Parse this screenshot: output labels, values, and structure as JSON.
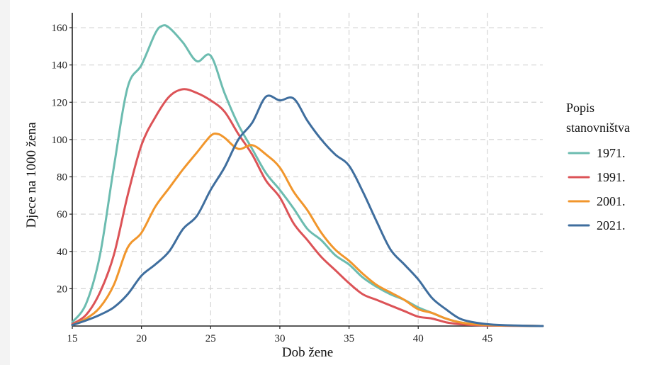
{
  "chart_data": {
    "type": "line",
    "title": "",
    "xlabel": "Dob žene",
    "ylabel": "Djece na 1000 žena",
    "xlim": [
      15,
      49
    ],
    "ylim": [
      0,
      168
    ],
    "xticks": [
      15,
      20,
      25,
      30,
      35,
      40,
      45
    ],
    "yticks": [
      20,
      40,
      60,
      80,
      100,
      120,
      140,
      160
    ],
    "grid": true,
    "legend_position": "right",
    "legend_title": [
      "Popis",
      "stanovništva"
    ],
    "series": [
      {
        "name": "1971.",
        "color": "#6cbcb0",
        "x": [
          15,
          16,
          17,
          18,
          19,
          20,
          21,
          21.5,
          22,
          23,
          24,
          25,
          26,
          27,
          28,
          29,
          30,
          31,
          32,
          33,
          34,
          35,
          36,
          37,
          38,
          39,
          40,
          41,
          42,
          43,
          44,
          45,
          46,
          47,
          48,
          49
        ],
        "y": [
          2,
          12,
          38,
          85,
          128,
          140,
          157,
          161,
          160,
          152,
          142,
          145,
          125,
          108,
          95,
          82,
          73,
          63,
          52,
          46,
          38,
          33,
          26,
          21,
          17,
          14,
          10,
          7,
          4,
          2,
          1,
          0.5,
          0.3,
          0.2,
          0.1,
          0
        ]
      },
      {
        "name": "1991.",
        "color": "#dc5357",
        "x": [
          15,
          16,
          17,
          18,
          19,
          20,
          21,
          22,
          23,
          24,
          25,
          26,
          27,
          28,
          29,
          30,
          31,
          32,
          33,
          34,
          35,
          36,
          37,
          38,
          39,
          40,
          41,
          42,
          43,
          44,
          45,
          46,
          47,
          48,
          49
        ],
        "y": [
          1,
          6,
          18,
          38,
          70,
          97,
          112,
          123,
          127,
          125,
          121,
          115,
          103,
          92,
          78,
          69,
          55,
          46,
          37,
          30,
          23,
          17,
          14,
          11,
          8,
          5,
          4,
          2,
          1,
          0.5,
          0.3,
          0.2,
          0.1,
          0.1,
          0
        ]
      },
      {
        "name": "2001.",
        "color": "#f1962c",
        "x": [
          15,
          16,
          17,
          18,
          19,
          20,
          21,
          22,
          23,
          24,
          25,
          25.5,
          26,
          27,
          28,
          29,
          30,
          31,
          32,
          33,
          34,
          35,
          36,
          37,
          38,
          39,
          40,
          41,
          42,
          43,
          44,
          45,
          46,
          47,
          48,
          49
        ],
        "y": [
          0.5,
          4,
          10,
          22,
          42,
          50,
          64,
          74,
          84,
          93,
          102,
          103,
          101,
          95,
          97,
          92,
          85,
          72,
          62,
          50,
          41,
          35,
          28,
          22,
          18,
          14,
          9,
          7,
          4,
          2,
          1,
          0.5,
          0.3,
          0.2,
          0.1,
          0
        ]
      },
      {
        "name": "2021.",
        "color": "#3f6e9e",
        "x": [
          15,
          16,
          17,
          18,
          19,
          20,
          21,
          22,
          23,
          24,
          25,
          26,
          27,
          28,
          29,
          30,
          31,
          32,
          33,
          34,
          35,
          36,
          37,
          38,
          39,
          40,
          41,
          42,
          43,
          44,
          45,
          46,
          47,
          48,
          49
        ],
        "y": [
          0.5,
          3,
          6,
          10,
          17,
          27,
          33,
          40,
          52,
          59,
          73,
          85,
          100,
          109,
          123,
          121,
          122,
          110,
          100,
          92,
          86,
          72,
          56,
          41,
          33,
          25,
          15,
          9,
          4,
          2,
          1,
          0.5,
          0.3,
          0.1,
          0
        ]
      }
    ]
  }
}
